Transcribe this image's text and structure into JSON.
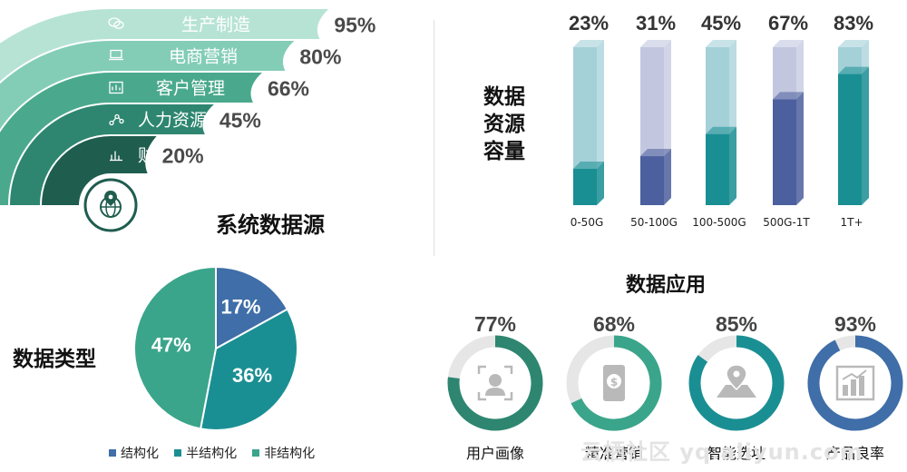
{
  "colors": {
    "teal": "#1a8f93",
    "teal_light": "#a4d0d8",
    "navy": "#4c5f9e",
    "navy_light": "#c2c7df",
    "green": "#3aa58b",
    "blue": "#3f6ea8",
    "grey_ring": "#e6e6e6",
    "icon_grey": "#b9b9b9",
    "band_colors": [
      "#b7e3d5",
      "#83cdb6",
      "#4aa98d",
      "#2e8670",
      "#1f5d4f"
    ]
  },
  "chart_data": [
    {
      "type": "bar",
      "orientation": "horizontal-arcs",
      "title": "系统数据源",
      "categories": [
        "生产制造",
        "电商营销",
        "客户管理",
        "人力资源",
        "财务"
      ],
      "values": [
        95,
        80,
        66,
        45,
        20
      ],
      "value_labels": [
        "95%",
        "80%",
        "66%",
        "45%",
        "20%"
      ],
      "icons": [
        "chat-bubble-icon",
        "laptop-icon",
        "dashboard-icon",
        "network-icon",
        "bar-chart-icon"
      ],
      "center_icon": "globe-location-icon",
      "ylim": [
        0,
        100
      ]
    },
    {
      "type": "bar",
      "title": "数据资源容量",
      "title_lines": [
        "数据",
        "资源",
        "容量"
      ],
      "categories": [
        "0-50G",
        "50-100G",
        "100-500G",
        "500G-1T",
        "1T+"
      ],
      "values": [
        23,
        31,
        45,
        67,
        83
      ],
      "value_labels": [
        "23%",
        "31%",
        "45%",
        "67%",
        "83%"
      ],
      "bar_palette": [
        "teal",
        "navy",
        "teal",
        "navy",
        "teal"
      ],
      "ylim": [
        0,
        100
      ]
    },
    {
      "type": "pie",
      "title": "数据类型",
      "labels": [
        "结构化",
        "半结构化",
        "非结构化"
      ],
      "values": [
        17,
        36,
        47
      ],
      "value_labels": [
        "17%",
        "36%",
        "47%"
      ],
      "colors": [
        "#3f6ea8",
        "#1a8f93",
        "#3aa58b"
      ],
      "legend": "bottom"
    },
    {
      "type": "donut",
      "title": "数据应用",
      "labels": [
        "用户画像",
        "精准营销",
        "智能选址",
        "产品良率"
      ],
      "values": [
        77,
        68,
        85,
        93
      ],
      "value_labels": [
        "77%",
        "68%",
        "85%",
        "93%"
      ],
      "colors": [
        "#2e8670",
        "#3aa58b",
        "#1a8f93",
        "#3f6ea8"
      ],
      "icons": [
        "face-scan-icon",
        "phone-payment-icon",
        "map-pin-icon",
        "growth-chart-icon"
      ]
    }
  ],
  "watermark": "云栖社区 yq.aliyun.com"
}
